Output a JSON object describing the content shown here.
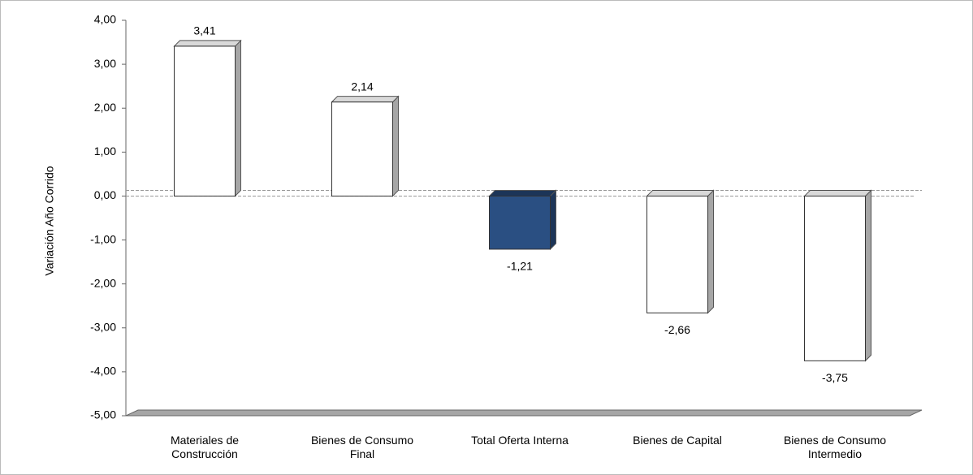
{
  "chart_data": {
    "type": "bar3d",
    "y_label": "Variación Año Corrido",
    "categories": [
      "Materiales de Construcción",
      "Bienes de Consumo Final",
      "Total Oferta Interna",
      "Bienes de Capital",
      "Bienes de Consumo Intermedio"
    ],
    "values": [
      3.41,
      2.14,
      -1.21,
      -2.66,
      -3.75
    ],
    "value_labels": [
      "3,41",
      "2,14",
      "-1,21",
      "-2,66",
      "-3,75"
    ],
    "colors": [
      "#ffffff",
      "#ffffff",
      "#2a4f82",
      "#ffffff",
      "#ffffff"
    ],
    "ylim": [
      -5,
      4
    ],
    "yticks": [
      {
        "value": -5,
        "label": "-5,00"
      },
      {
        "value": -4,
        "label": "-4,00"
      },
      {
        "value": -3,
        "label": "-3,00"
      },
      {
        "value": -2,
        "label": "-2,00"
      },
      {
        "value": -1,
        "label": "-1,00"
      },
      {
        "value": 0,
        "label": "0,00"
      },
      {
        "value": 1,
        "label": "1,00"
      },
      {
        "value": 2,
        "label": "2,00"
      },
      {
        "value": 3,
        "label": "3,00"
      },
      {
        "value": 4,
        "label": "4,00"
      }
    ]
  }
}
